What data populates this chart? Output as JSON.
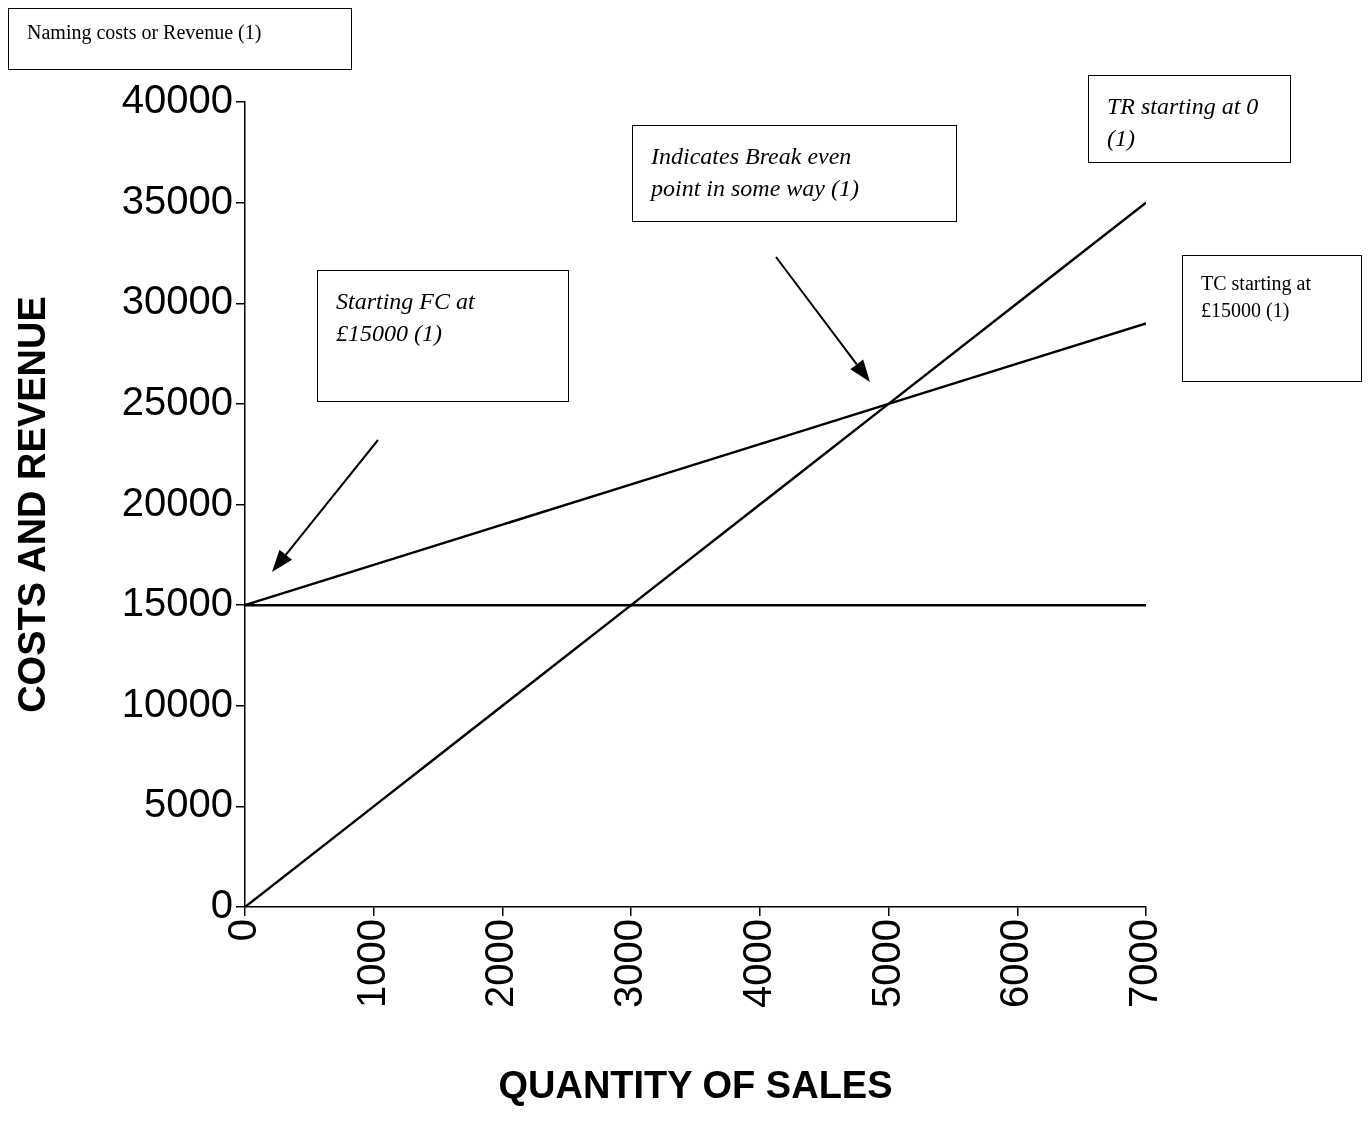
{
  "chart_data": {
    "type": "line",
    "xlabel": "QUANTITY OF SALES",
    "ylabel": "COSTS AND REVENUE",
    "x": [
      0,
      1000,
      2000,
      3000,
      4000,
      5000,
      6000,
      7000
    ],
    "series": [
      {
        "color": "#000000",
        "values": [
          15000,
          15000,
          15000,
          15000,
          15000,
          15000,
          15000,
          15000
        ]
      },
      {
        "color": "#000000",
        "values": [
          15000,
          17000,
          19000,
          21000,
          23000,
          25000,
          27000,
          29000
        ]
      },
      {
        "color": "#000000",
        "values": [
          0,
          5000,
          10000,
          15000,
          20000,
          25000,
          30000,
          35000
        ]
      }
    ],
    "xlim": [
      0,
      7000
    ],
    "xticks": [
      0,
      1000,
      2000,
      3000,
      4000,
      5000,
      6000,
      7000
    ],
    "ylim": [
      0,
      40000
    ],
    "yticks": [
      0,
      5000,
      10000,
      15000,
      20000,
      25000,
      30000,
      35000,
      40000
    ],
    "grid": false,
    "legend": false,
    "marker": "none",
    "line_style": "solid",
    "annotations": [
      "Naming costs or Revenue (1)",
      "Starting FC at £15000 (1)",
      "Indicates Break even point in some way (1)",
      "TR starting at 0 (1)",
      "TC starting at £15000 (1)"
    ]
  }
}
